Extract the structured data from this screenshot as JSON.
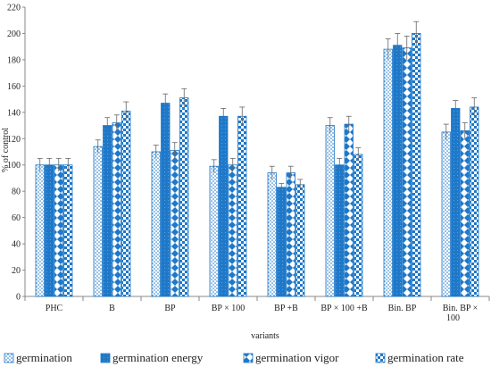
{
  "chart_data": {
    "type": "bar",
    "categories": [
      "PHC",
      "B",
      "BP",
      "BP × 100",
      "BP +B",
      "BP × 100 +B",
      "Bin. BP",
      "Bin. BP  ×\n100"
    ],
    "series": [
      {
        "name": "germination",
        "values": [
          100,
          114,
          110,
          99,
          94,
          130,
          188,
          125
        ],
        "errors": [
          5,
          5,
          5,
          5,
          5,
          6,
          8,
          6
        ],
        "color": "#1f78c8",
        "pattern": "dots"
      },
      {
        "name": "germination energy",
        "values": [
          100,
          130,
          147,
          137,
          83,
          100,
          191,
          143
        ],
        "errors": [
          5,
          6,
          7,
          6,
          3,
          5,
          9,
          6
        ],
        "color": "#1f78c8",
        "pattern": "solid"
      },
      {
        "name": "germination vigor",
        "values": [
          100,
          132,
          111,
          100,
          94,
          131,
          189,
          126
        ],
        "errors": [
          5,
          6,
          6,
          5,
          5,
          6,
          9,
          6
        ],
        "color": "#1f78c8",
        "pattern": "diamonds"
      },
      {
        "name": "germination rate",
        "values": [
          100,
          141,
          151,
          137,
          85,
          108,
          200,
          144
        ],
        "errors": [
          5,
          7,
          7,
          7,
          4,
          5,
          9,
          7
        ],
        "color": "#1f78c8",
        "pattern": "checker"
      }
    ],
    "xlabel": "variants",
    "ylabel": "% of control",
    "ylim": [
      0,
      220
    ],
    "yticks": [
      0,
      20,
      40,
      60,
      80,
      100,
      120,
      140,
      160,
      180,
      200,
      220
    ],
    "grid": false,
    "legend_position": "bottom"
  }
}
